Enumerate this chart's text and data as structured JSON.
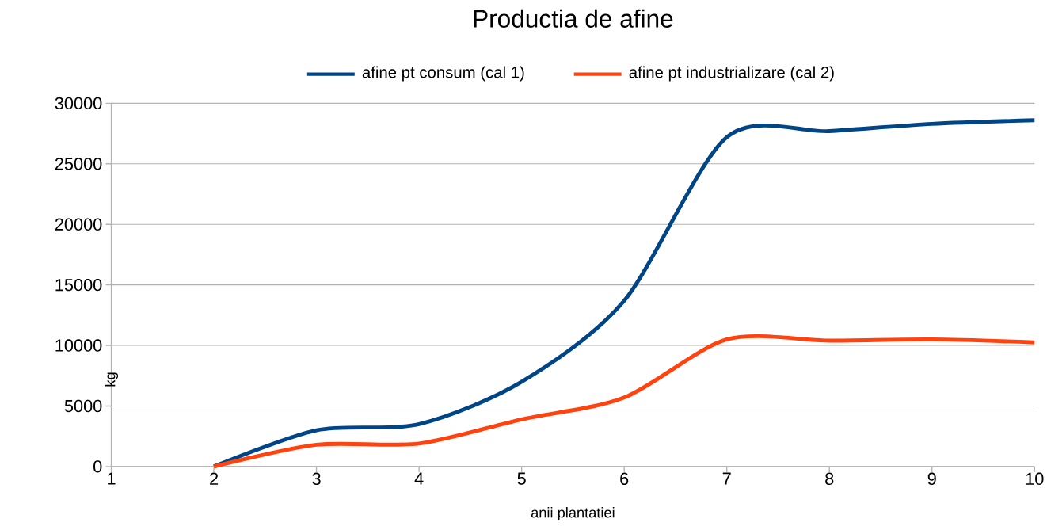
{
  "chart_data": {
    "type": "line",
    "title": "Productia de afine",
    "xlabel": "anii plantatiei",
    "ylabel": "kg",
    "x": [
      2,
      3,
      4,
      5,
      6,
      7,
      8,
      9,
      10
    ],
    "series": [
      {
        "name": "afine pt consum (cal 1)",
        "color": "#004586",
        "values": [
          0,
          3000,
          3500,
          7000,
          13700,
          27200,
          27700,
          28300,
          28600
        ]
      },
      {
        "name": "afine pt industrializare (cal 2)",
        "color": "#ff420e",
        "values": [
          0,
          1800,
          1900,
          3900,
          5700,
          10500,
          10400,
          10500,
          10250
        ]
      }
    ],
    "xlim": [
      1,
      10
    ],
    "xticks": [
      1,
      2,
      3,
      4,
      5,
      6,
      7,
      8,
      9,
      10
    ],
    "ylim": [
      0,
      30000
    ],
    "yticks": [
      0,
      5000,
      10000,
      15000,
      20000,
      25000,
      30000
    ],
    "grid": "y",
    "legend": "top",
    "marker": "none",
    "line_style": "solid"
  }
}
